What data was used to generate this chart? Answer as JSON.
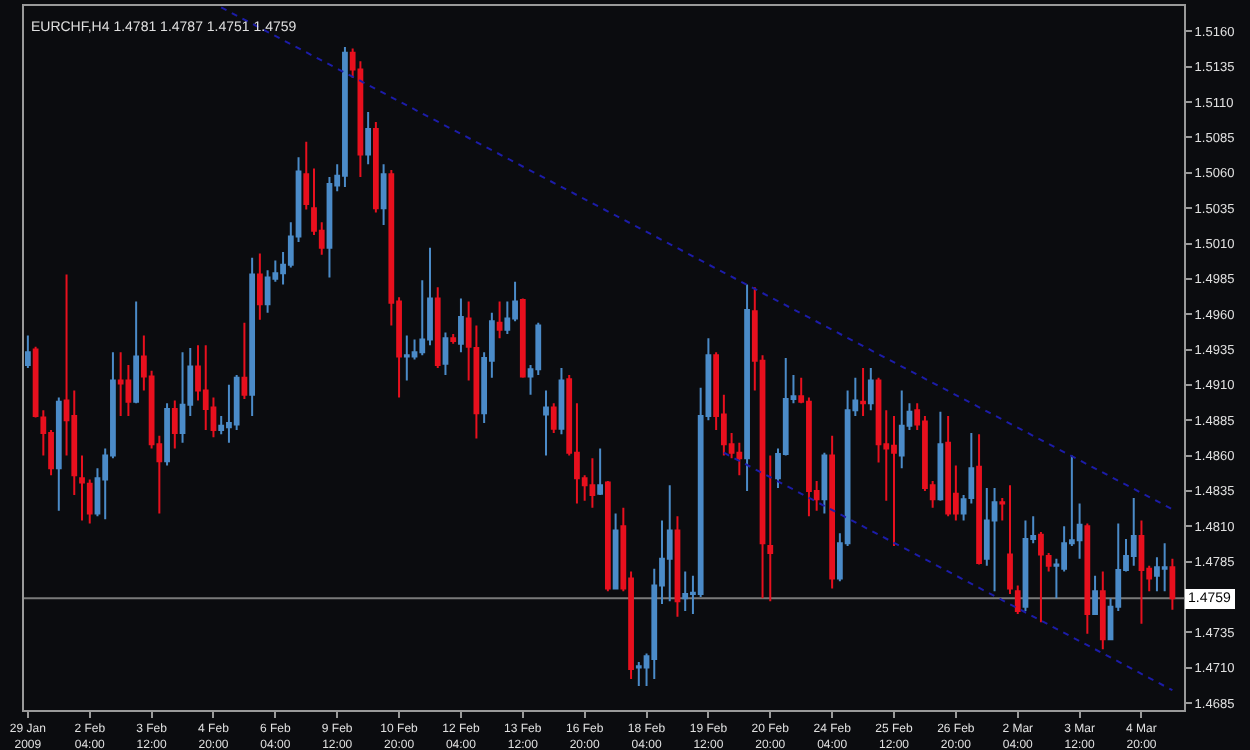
{
  "chart_data": {
    "type": "candlestick",
    "title": "EURCHF,H4 1.4781 1.4787 1.4751 1.4759",
    "categories": [
      "29 Jan 2009",
      null,
      null,
      null,
      null,
      null,
      null,
      null,
      "2 Feb 04:00",
      null,
      null,
      null,
      null,
      null,
      null,
      null,
      "3 Feb 12:00",
      null,
      null,
      null,
      null,
      null,
      null,
      null,
      "4 Feb 20:00",
      null,
      null,
      null,
      null,
      null,
      null,
      null,
      "6 Feb 04:00",
      null,
      null,
      null,
      null,
      null,
      null,
      null,
      "9 Feb 12:00",
      null,
      null,
      null,
      null,
      null,
      null,
      null,
      "10 Feb 20:00",
      null,
      null,
      null,
      null,
      null,
      null,
      null,
      "12 Feb 04:00",
      null,
      null,
      null,
      null,
      null,
      null,
      null,
      "13 Feb 12:00",
      null,
      null,
      null,
      null,
      null,
      null,
      null,
      "16 Feb 20:00",
      null,
      null,
      null,
      null,
      null,
      null,
      null,
      "18 Feb 04:00",
      null,
      null,
      null,
      null,
      null,
      null,
      null,
      "19 Feb 12:00",
      null,
      null,
      null,
      null,
      null,
      null,
      null,
      "20 Feb 20:00",
      null,
      null,
      null,
      null,
      null,
      null,
      null,
      "24 Feb 04:00",
      null,
      null,
      null,
      null,
      null,
      null,
      null,
      "25 Feb 12:00",
      null,
      null,
      null,
      null,
      null,
      null,
      null,
      "26 Feb 20:00",
      null,
      null,
      null,
      null,
      null,
      null,
      null,
      "2 Mar 04:00",
      null,
      null,
      null,
      null,
      null,
      null,
      null,
      "3 Mar 12:00",
      null,
      null,
      null,
      null,
      null,
      null,
      null,
      "4 Mar 20:00",
      null,
      null,
      null,
      null
    ],
    "ylim": [
      1.468,
      1.5178
    ],
    "yticks": [
      1.4685,
      {
        "value": 1.471,
        "label": "1.4710"
      },
      1.4735,
      1.4785,
      {
        "value": 1.481,
        "label": "1.4810"
      },
      1.4835,
      {
        "value": 1.486,
        "label": "1.4860"
      },
      1.4885,
      {
        "value": 1.491,
        "label": "1.4910"
      },
      1.4935,
      {
        "value": 1.496,
        "label": "1.4960"
      },
      1.4985,
      {
        "value": 1.501,
        "label": "1.5010"
      },
      1.5035,
      {
        "value": 1.506,
        "label": "1.5060"
      },
      1.5085,
      {
        "value": 1.511,
        "label": "1.5110"
      },
      1.5135,
      {
        "value": 1.516,
        "label": "1.5160"
      }
    ],
    "grid": false,
    "series": [
      {
        "colors": [
          "#4b8bc8",
          "#e8101e",
          "#e8101e",
          "#e8101e",
          "#4b8bc8",
          "#e8101e",
          "#e8101e",
          "#e8101e",
          "#e8101e",
          "#4b8bc8",
          "#4b8bc8",
          "#4b8bc8",
          "#e8101e",
          "#e8101e",
          "#4b8bc8",
          "#e8101e",
          "#e8101e",
          "#e8101e",
          "#4b8bc8",
          "#e8101e",
          "#4b8bc8",
          "#4b8bc8",
          "#e8101e",
          "#e8101e",
          "#e8101e",
          "#4b8bc8",
          "#4b8bc8",
          "#4b8bc8",
          "#e8101e",
          "#4b8bc8",
          "#e8101e",
          "#4b8bc8",
          "#4b8bc8",
          "#4b8bc8",
          "#4b8bc8",
          "#4b8bc8",
          "#e8101e",
          "#e8101e",
          "#e8101e",
          "#4b8bc8",
          "#4b8bc8",
          "#4b8bc8",
          "#e8101e",
          "#e8101e",
          "#4b8bc8",
          "#e8101e",
          "#4b8bc8",
          "#e8101e",
          "#e8101e",
          "#4b8bc8",
          "#4b8bc8",
          "#4b8bc8",
          "#4b8bc8",
          "#e8101e",
          "#4b8bc8",
          "#e8101e",
          "#4b8bc8",
          "#e8101e",
          "#e8101e",
          "#4b8bc8",
          "#4b8bc8",
          "#e8101e",
          "#4b8bc8",
          "#4b8bc8",
          "#e8101e",
          "#4b8bc8",
          "#4b8bc8",
          "#4b8bc8",
          "#e8101e",
          "#4b8bc8",
          "#e8101e",
          "#e8101e",
          "#e8101e",
          "#e8101e",
          "#4b8bc8",
          "#e8101e",
          "#4b8bc8",
          "#e8101e",
          "#e8101e",
          "#4b8bc8",
          "#4b8bc8",
          "#4b8bc8",
          "#4b8bc8",
          "#4b8bc8",
          "#e8101e",
          "#4b8bc8",
          "#4b8bc8",
          "#4b8bc8",
          "#4b8bc8",
          "#e8101e",
          "#e8101e",
          "#e8101e",
          "#e8101e",
          "#4b8bc8",
          "#e8101e",
          "#e8101e",
          "#e8101e",
          "#4b8bc8",
          "#4b8bc8",
          "#4b8bc8",
          "#e8101e",
          "#e8101e",
          "#e8101e",
          "#4b8bc8",
          "#e8101e",
          "#4b8bc8",
          "#4b8bc8",
          "#4b8bc8",
          "#e8101e",
          "#4b8bc8",
          "#e8101e",
          "#e8101e",
          "#e8101e",
          "#4b8bc8",
          "#4b8bc8",
          "#e8101e",
          "#e8101e",
          "#e8101e",
          "#4b8bc8",
          "#e8101e",
          "#e8101e",
          "#4b8bc8",
          "#4b8bc8",
          "#e8101e",
          "#4b8bc8",
          "#4b8bc8",
          "#e8101e",
          "#e8101e",
          "#e8101e",
          "#4b8bc8",
          "#4b8bc8",
          "#e8101e",
          "#e8101e",
          "#4b8bc8",
          "#4b8bc8",
          "#4b8bc8",
          "#4b8bc8",
          "#e8101e",
          "#4b8bc8",
          "#e8101e",
          "#4b8bc8",
          "#4b8bc8",
          "#4b8bc8",
          "#4b8bc8",
          "#e8101e",
          "#e8101e",
          "#4b8bc8",
          "#4b8bc8",
          "#e8101e"
        ],
        "ohlc": [
          [
            1.4924,
            1.4945,
            1.4922,
            1.4933
          ],
          [
            1.4935,
            1.4937,
            1.4887,
            1.4888
          ],
          [
            1.4887,
            1.4892,
            1.486,
            1.4876
          ],
          [
            1.4876,
            1.4878,
            1.4846,
            1.4851
          ],
          [
            1.4851,
            1.4901,
            1.4821,
            1.4898
          ],
          [
            1.4899,
            1.4988,
            1.486,
            1.4885
          ],
          [
            1.4888,
            1.4906,
            1.4832,
            1.4846
          ],
          [
            1.4844,
            1.486,
            1.4814,
            1.4841
          ],
          [
            1.484,
            1.4843,
            1.4812,
            1.4819
          ],
          [
            1.4819,
            1.4851,
            1.4817,
            1.4844
          ],
          [
            1.4843,
            1.4865,
            1.4815,
            1.486
          ],
          [
            1.486,
            1.4933,
            1.4858,
            1.4913
          ],
          [
            1.4913,
            1.4933,
            1.4888,
            1.4911
          ],
          [
            1.4913,
            1.4924,
            1.4888,
            1.4898
          ],
          [
            1.4898,
            1.4969,
            1.4897,
            1.493
          ],
          [
            1.493,
            1.4945,
            1.4906,
            1.4916
          ],
          [
            1.4916,
            1.492,
            1.4865,
            1.4868
          ],
          [
            1.4868,
            1.4874,
            1.4819,
            1.4856
          ],
          [
            1.4856,
            1.4897,
            1.4853,
            1.4893
          ],
          [
            1.4893,
            1.4899,
            1.4865,
            1.4876
          ],
          [
            1.4876,
            1.4933,
            1.4869,
            1.4896
          ],
          [
            1.4896,
            1.4936,
            1.4888,
            1.4923
          ],
          [
            1.4923,
            1.4938,
            1.4899,
            1.4906
          ],
          [
            1.4906,
            1.4938,
            1.4878,
            1.4893
          ],
          [
            1.4894,
            1.4901,
            1.4873,
            1.4878
          ],
          [
            1.4878,
            1.4888,
            1.4875,
            1.4881
          ],
          [
            1.488,
            1.491,
            1.4869,
            1.4883
          ],
          [
            1.4882,
            1.4917,
            1.4878,
            1.4915
          ],
          [
            1.4915,
            1.4954,
            1.49,
            1.4903
          ],
          [
            1.4903,
            1.5,
            1.4888,
            1.4988
          ],
          [
            1.4988,
            1.5003,
            1.4956,
            1.4967
          ],
          [
            1.4967,
            1.4991,
            1.4961,
            1.4986
          ],
          [
            1.4985,
            1.4998,
            1.4983,
            1.4989
          ],
          [
            1.4989,
            1.5004,
            1.4981,
            1.4995
          ],
          [
            1.4995,
            1.5025,
            1.4993,
            1.5015
          ],
          [
            1.5015,
            1.5071,
            1.5011,
            1.5061
          ],
          [
            1.5059,
            1.5082,
            1.5034,
            1.5038
          ],
          [
            1.5035,
            1.5063,
            1.5016,
            1.5019
          ],
          [
            1.5019,
            1.5025,
            1.5002,
            1.5007
          ],
          [
            1.5007,
            1.5057,
            1.4986,
            1.5052
          ],
          [
            1.5051,
            1.5066,
            1.5047,
            1.5058
          ],
          [
            1.5058,
            1.5149,
            1.505,
            1.5145
          ],
          [
            1.5145,
            1.5148,
            1.5127,
            1.5133
          ],
          [
            1.5133,
            1.5139,
            1.5057,
            1.5073
          ],
          [
            1.5073,
            1.5103,
            1.5066,
            1.5091
          ],
          [
            1.5091,
            1.5096,
            1.5032,
            1.5035
          ],
          [
            1.5035,
            1.5066,
            1.5023,
            1.5059
          ],
          [
            1.5059,
            1.5062,
            1.4952,
            1.4968
          ],
          [
            1.4969,
            1.4972,
            1.4901,
            1.493
          ],
          [
            1.493,
            1.4945,
            1.4913,
            1.4931
          ],
          [
            1.493,
            1.4942,
            1.4928,
            1.4933
          ],
          [
            1.4933,
            1.4984,
            1.4931,
            1.4942
          ],
          [
            1.4942,
            1.5007,
            1.4938,
            1.4971
          ],
          [
            1.4971,
            1.4979,
            1.4922,
            1.4924
          ],
          [
            1.4925,
            1.4947,
            1.4917,
            1.4943
          ],
          [
            1.4943,
            1.4946,
            1.4939,
            1.4941
          ],
          [
            1.4939,
            1.4971,
            1.4933,
            1.4958
          ],
          [
            1.4957,
            1.4969,
            1.4913,
            1.4937
          ],
          [
            1.4936,
            1.4952,
            1.4872,
            1.489
          ],
          [
            1.489,
            1.4933,
            1.4883,
            1.4929
          ],
          [
            1.4927,
            1.4961,
            1.4915,
            1.4955
          ],
          [
            1.4954,
            1.4969,
            1.4943,
            1.4949
          ],
          [
            1.4949,
            1.4969,
            1.4946,
            1.4957
          ],
          [
            1.4957,
            1.4983,
            1.4955,
            1.4969
          ],
          [
            1.497,
            1.4971,
            1.4915,
            1.4916
          ],
          [
            1.4916,
            1.4924,
            1.4903,
            1.4921
          ],
          [
            1.4921,
            1.4954,
            1.4917,
            1.4952
          ],
          [
            1.4889,
            1.4906,
            1.486,
            1.4894
          ],
          [
            1.4894,
            1.4897,
            1.4876,
            1.4879
          ],
          [
            1.4879,
            1.4922,
            1.4875,
            1.4913
          ],
          [
            1.4914,
            1.4917,
            1.486,
            1.4862
          ],
          [
            1.4862,
            1.4897,
            1.4826,
            1.4844
          ],
          [
            1.4844,
            1.4846,
            1.4828,
            1.4839
          ],
          [
            1.4839,
            1.4858,
            1.4823,
            1.4832
          ],
          [
            1.4833,
            1.4865,
            1.4832,
            1.4839
          ],
          [
            1.4841,
            1.4842,
            1.4764,
            1.4766
          ],
          [
            1.4766,
            1.4819,
            1.4766,
            1.4807
          ],
          [
            1.481,
            1.4823,
            1.4764,
            1.4766
          ],
          [
            1.4773,
            1.4778,
            1.4702,
            1.4709
          ],
          [
            1.471,
            1.4714,
            1.4697,
            1.4711
          ],
          [
            1.471,
            1.472,
            1.4697,
            1.4718
          ],
          [
            1.4716,
            1.478,
            1.4702,
            1.4768
          ],
          [
            1.4768,
            1.4814,
            1.4755,
            1.4787
          ],
          [
            1.4787,
            1.4839,
            1.4757,
            1.4807
          ],
          [
            1.4807,
            1.4817,
            1.4746,
            1.4757
          ],
          [
            1.4759,
            1.4778,
            1.475,
            1.4762
          ],
          [
            1.4762,
            1.4775,
            1.4748,
            1.4763
          ],
          [
            1.4762,
            1.4908,
            1.476,
            1.4888
          ],
          [
            1.4888,
            1.4943,
            1.4885,
            1.4931
          ],
          [
            1.4931,
            1.4933,
            1.4878,
            1.4888
          ],
          [
            1.4889,
            1.4903,
            1.486,
            1.4868
          ],
          [
            1.4868,
            1.4876,
            1.4858,
            1.4862
          ],
          [
            1.4862,
            1.4869,
            1.4846,
            1.4858
          ],
          [
            1.4858,
            1.4981,
            1.4835,
            1.4963
          ],
          [
            1.4962,
            1.4979,
            1.4906,
            1.4927
          ],
          [
            1.4927,
            1.4931,
            1.4759,
            1.4798
          ],
          [
            1.4796,
            1.486,
            1.4757,
            1.4791
          ],
          [
            1.4844,
            1.4865,
            1.4837,
            1.4861
          ],
          [
            1.4861,
            1.4929,
            1.486,
            1.49
          ],
          [
            1.49,
            1.4917,
            1.4897,
            1.4902
          ],
          [
            1.4902,
            1.4915,
            1.4897,
            1.4898
          ],
          [
            1.4898,
            1.4901,
            1.4817,
            1.4835
          ],
          [
            1.4835,
            1.4842,
            1.4821,
            1.4829
          ],
          [
            1.4829,
            1.4862,
            1.4819,
            1.486
          ],
          [
            1.486,
            1.4874,
            1.4766,
            1.4773
          ],
          [
            1.4773,
            1.4805,
            1.4771,
            1.4798
          ],
          [
            1.4798,
            1.4906,
            1.4796,
            1.4892
          ],
          [
            1.4892,
            1.4915,
            1.4888,
            1.4899
          ],
          [
            1.4898,
            1.4922,
            1.4888,
            1.4897
          ],
          [
            1.4897,
            1.4922,
            1.4892,
            1.4913
          ],
          [
            1.4913,
            1.4915,
            1.4855,
            1.4868
          ],
          [
            1.4868,
            1.4892,
            1.4828,
            1.4865
          ],
          [
            1.4867,
            1.4888,
            1.4796,
            1.4862
          ],
          [
            1.486,
            1.4906,
            1.4851,
            1.4881
          ],
          [
            1.4881,
            1.4897,
            1.4878,
            1.4891
          ],
          [
            1.4892,
            1.4897,
            1.4878,
            1.4882
          ],
          [
            1.4884,
            1.4888,
            1.4835,
            1.4837
          ],
          [
            1.4839,
            1.4842,
            1.4823,
            1.4829
          ],
          [
            1.4829,
            1.4891,
            1.4828,
            1.4868
          ],
          [
            1.4869,
            1.4888,
            1.4817,
            1.4819
          ],
          [
            1.4833,
            1.4853,
            1.4814,
            1.4819
          ],
          [
            1.4819,
            1.4832,
            1.4814,
            1.4829
          ],
          [
            1.483,
            1.4876,
            1.4826,
            1.4851
          ],
          [
            1.4852,
            1.4875,
            1.4783,
            1.4784
          ],
          [
            1.4787,
            1.4837,
            1.4782,
            1.4814
          ],
          [
            1.4814,
            1.4837,
            1.4764,
            1.4827
          ],
          [
            1.4827,
            1.483,
            1.4814,
            1.4826
          ],
          [
            1.479,
            1.4839,
            1.4762,
            1.4766
          ],
          [
            1.4764,
            1.4768,
            1.4748,
            1.475
          ],
          [
            1.4753,
            1.4814,
            1.475,
            1.4801
          ],
          [
            1.4801,
            1.4817,
            1.4798,
            1.4803
          ],
          [
            1.4804,
            1.4806,
            1.4742,
            1.479
          ],
          [
            1.4789,
            1.4791,
            1.4778,
            1.4782
          ],
          [
            1.4782,
            1.4787,
            1.4759,
            1.4783
          ],
          [
            1.478,
            1.481,
            1.4778,
            1.4798
          ],
          [
            1.4798,
            1.486,
            1.4796,
            1.48
          ],
          [
            1.48,
            1.4826,
            1.4787,
            1.4811
          ],
          [
            1.481,
            1.4812,
            1.4734,
            1.4748
          ],
          [
            1.4748,
            1.4775,
            1.4748,
            1.4764
          ],
          [
            1.4764,
            1.4778,
            1.4723,
            1.473
          ],
          [
            1.473,
            1.4759,
            1.473,
            1.4753
          ],
          [
            1.4753,
            1.4812,
            1.475,
            1.4779
          ],
          [
            1.4779,
            1.4801,
            1.4778,
            1.4789
          ],
          [
            1.4789,
            1.483,
            1.4782,
            1.4803
          ],
          [
            1.4803,
            1.4814,
            1.4741,
            1.4779
          ],
          [
            1.478,
            1.4782,
            1.4764,
            1.4773
          ],
          [
            1.4775,
            1.4788,
            1.4764,
            1.4781
          ],
          [
            1.478,
            1.4798,
            1.4764,
            1.4781
          ],
          [
            1.4781,
            1.4787,
            1.4751,
            1.4759
          ]
        ]
      },
      {
        "type": "line",
        "color": "#1c1ca8",
        "line_style": "dotted",
        "values": [
          null,
          null,
          null,
          null,
          null,
          null,
          null,
          null,
          null,
          null,
          null,
          null,
          null,
          null,
          null,
          null,
          null,
          null,
          null,
          null,
          null,
          null,
          null,
          null,
          null,
          1.5177,
          null,
          null,
          null,
          null,
          null,
          null,
          null,
          null,
          null,
          null,
          null,
          null,
          null,
          null,
          null,
          null,
          null,
          null,
          null,
          null,
          null,
          null,
          null,
          null,
          null,
          null,
          null,
          null,
          null,
          null,
          null,
          null,
          null,
          null,
          null,
          null,
          null,
          null,
          null,
          null,
          null,
          null,
          null,
          null,
          null,
          null,
          null,
          null,
          null,
          null,
          null,
          null,
          null,
          null,
          null,
          null,
          null,
          null,
          null,
          null,
          null,
          null,
          null,
          null,
          null,
          null,
          null,
          null,
          null,
          null,
          null,
          null,
          null,
          null,
          null,
          null,
          null,
          null,
          null,
          null,
          null,
          null,
          null,
          null,
          null,
          null,
          null,
          null,
          null,
          null,
          null,
          null,
          null,
          null,
          null,
          null,
          null,
          null,
          null,
          null,
          null,
          null,
          null,
          null,
          null,
          null,
          null,
          null,
          null,
          null,
          null,
          null,
          null,
          null,
          null,
          null,
          null,
          null,
          null,
          null,
          null,
          null,
          1.4822
        ]
      },
      {
        "type": "line",
        "color": "#1c1ca8",
        "line_style": "dotted",
        "values": [
          null,
          null,
          null,
          null,
          null,
          null,
          null,
          null,
          null,
          null,
          null,
          null,
          null,
          null,
          null,
          null,
          null,
          null,
          null,
          null,
          null,
          null,
          null,
          null,
          null,
          null,
          null,
          null,
          null,
          null,
          null,
          null,
          null,
          null,
          null,
          null,
          null,
          null,
          null,
          null,
          null,
          null,
          null,
          null,
          null,
          null,
          null,
          null,
          null,
          null,
          null,
          null,
          null,
          null,
          null,
          null,
          null,
          null,
          null,
          null,
          null,
          null,
          null,
          null,
          null,
          null,
          null,
          null,
          null,
          null,
          null,
          null,
          null,
          null,
          null,
          null,
          null,
          null,
          null,
          null,
          null,
          null,
          null,
          null,
          null,
          null,
          null,
          null,
          null,
          null,
          1.4862,
          null,
          null,
          null,
          null,
          null,
          null,
          null,
          null,
          null,
          null,
          null,
          null,
          null,
          null,
          null,
          null,
          null,
          null,
          null,
          null,
          null,
          null,
          null,
          null,
          null,
          null,
          null,
          null,
          null,
          null,
          null,
          null,
          null,
          null,
          null,
          null,
          null,
          null,
          null,
          null,
          null,
          null,
          null,
          null,
          null,
          null,
          null,
          null,
          null,
          null,
          null,
          null,
          null,
          null,
          null,
          null,
          null,
          1.4694
        ]
      }
    ],
    "ref_lines": [
      {
        "axis": "y",
        "value": 1.4759,
        "label": "1.4759",
        "color": "#7a7a7a",
        "line_style": "solid"
      }
    ]
  }
}
